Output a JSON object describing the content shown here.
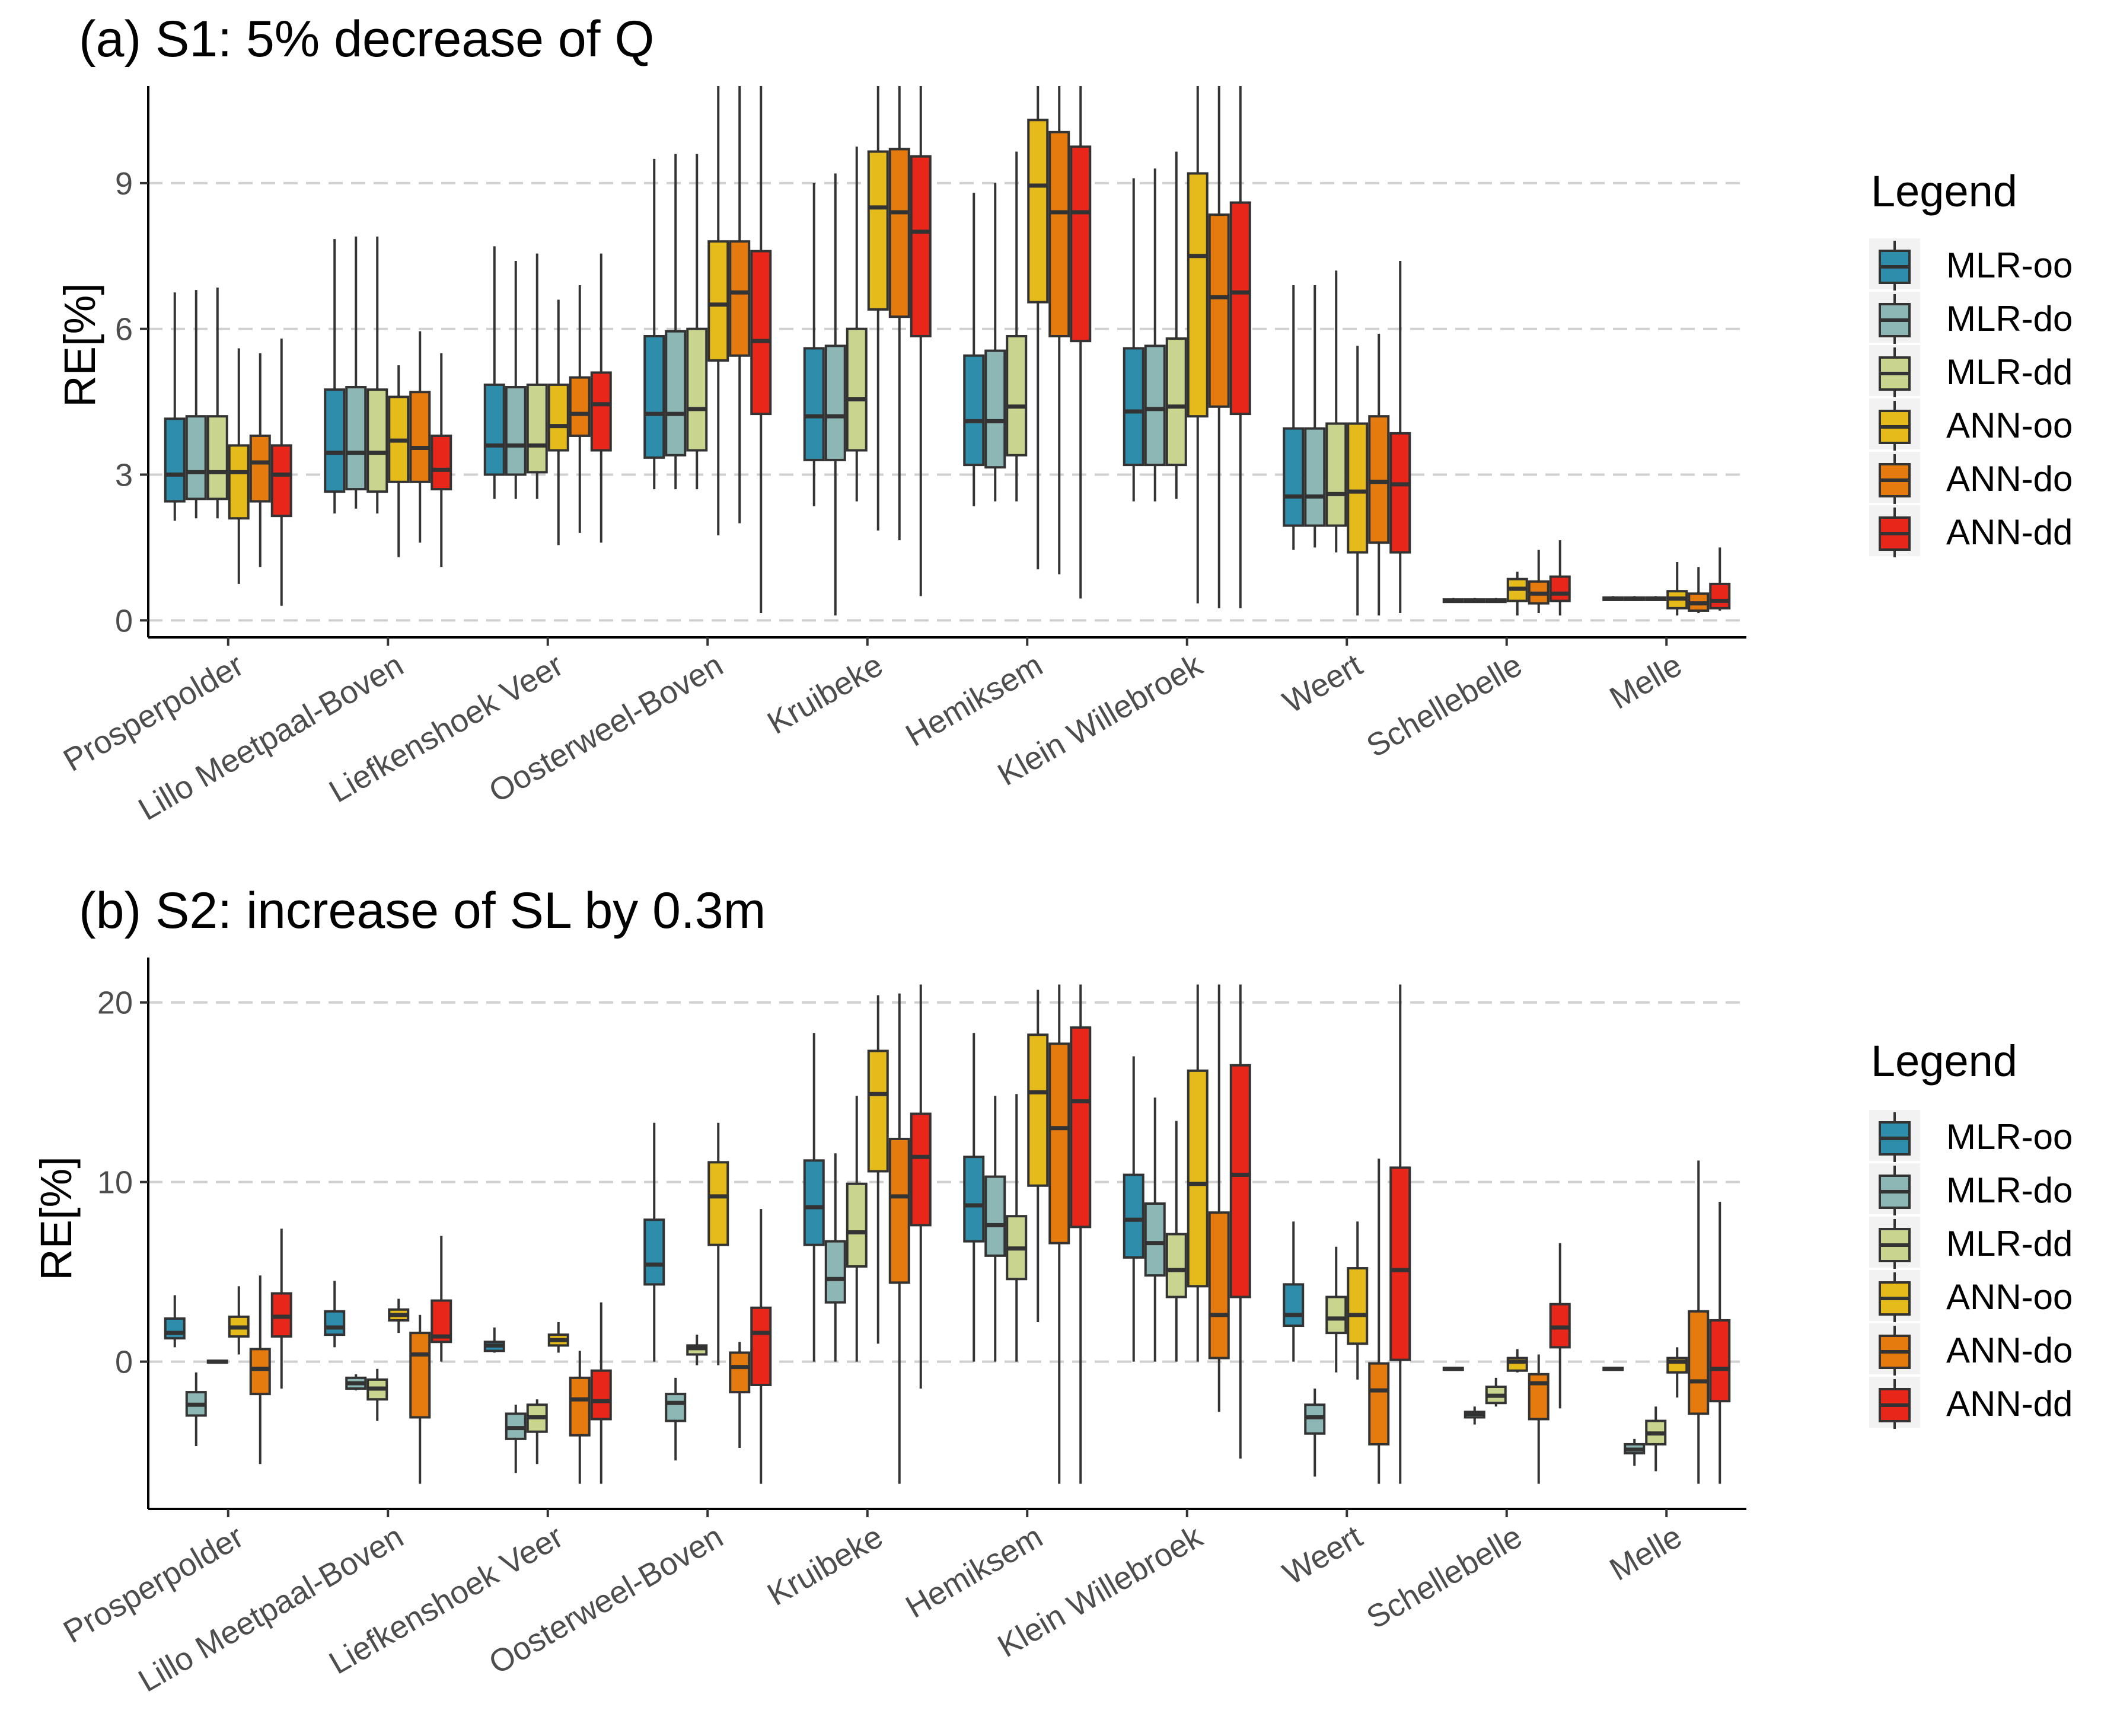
{
  "chart_data": [
    {
      "type": "boxplot",
      "title": "(a) S1: 5% decrease of Q",
      "ylabel": "RE[%]",
      "xlabel": "",
      "ylim": [
        -0.35,
        11.0
      ],
      "yticks": [
        0,
        3,
        6,
        9
      ],
      "grid": "horizontal-dashed",
      "legend_title": "Legend",
      "legend_placement": "right",
      "categories": [
        "Prosperpolder",
        "Lillo Meetpaal-Boven",
        "Liefkenshoek Veer",
        "Oosterweel-Boven",
        "Kruibeke",
        "Hemiksem",
        "Klein Willebroek",
        "Weert",
        "Schellebelle",
        "Melle"
      ],
      "series": [
        {
          "name": "MLR-oo",
          "color": "#2E8DAA",
          "boxes": [
            [
              2.05,
              2.45,
              3.0,
              4.15,
              6.75
            ],
            [
              2.2,
              2.65,
              3.45,
              4.75,
              7.85
            ],
            [
              2.5,
              3.0,
              3.6,
              4.85,
              7.7
            ],
            [
              2.7,
              3.35,
              4.25,
              5.85,
              9.5
            ],
            [
              2.35,
              3.3,
              4.2,
              5.6,
              9.0
            ],
            [
              2.35,
              3.2,
              4.1,
              5.45,
              8.8
            ],
            [
              2.45,
              3.2,
              4.3,
              5.6,
              9.1
            ],
            [
              1.45,
              1.95,
              2.55,
              3.95,
              6.9
            ],
            [
              0.36,
              0.38,
              0.4,
              0.43,
              0.46
            ],
            [
              0.4,
              0.42,
              0.44,
              0.47,
              0.5
            ]
          ]
        },
        {
          "name": "MLR-do",
          "color": "#8DB7B5",
          "boxes": [
            [
              2.1,
              2.5,
              3.05,
              4.2,
              6.8
            ],
            [
              2.3,
              2.7,
              3.45,
              4.8,
              7.9
            ],
            [
              2.5,
              3.0,
              3.6,
              4.8,
              7.4
            ],
            [
              2.7,
              3.4,
              4.25,
              5.95,
              9.6
            ],
            [
              0.1,
              3.3,
              4.2,
              5.65,
              9.2
            ],
            [
              2.45,
              3.15,
              4.1,
              5.55,
              9.0
            ],
            [
              2.45,
              3.2,
              4.35,
              5.65,
              9.3
            ],
            [
              1.5,
              1.95,
              2.55,
              3.95,
              6.9
            ],
            [
              0.36,
              0.38,
              0.4,
              0.43,
              0.46
            ],
            [
              0.4,
              0.42,
              0.44,
              0.47,
              0.5
            ]
          ]
        },
        {
          "name": "MLR-dd",
          "color": "#C9D58F",
          "boxes": [
            [
              2.1,
              2.5,
              3.05,
              4.2,
              6.85
            ],
            [
              2.2,
              2.65,
              3.45,
              4.75,
              7.9
            ],
            [
              2.5,
              3.05,
              3.6,
              4.85,
              7.55
            ],
            [
              2.7,
              3.5,
              4.35,
              6.0,
              9.6
            ],
            [
              2.45,
              3.5,
              4.55,
              6.0,
              9.75
            ],
            [
              2.45,
              3.4,
              4.4,
              5.85,
              9.65
            ],
            [
              2.5,
              3.2,
              4.4,
              5.8,
              9.65
            ],
            [
              1.4,
              1.95,
              2.6,
              4.05,
              7.2
            ],
            [
              0.36,
              0.38,
              0.4,
              0.43,
              0.46
            ],
            [
              0.4,
              0.42,
              0.44,
              0.47,
              0.5
            ]
          ]
        },
        {
          "name": "ANN-oo",
          "color": "#E5BA1B",
          "boxes": [
            [
              0.75,
              2.1,
              3.05,
              3.6,
              5.6
            ],
            [
              1.3,
              2.85,
              3.7,
              4.6,
              5.25
            ],
            [
              1.55,
              3.5,
              4.0,
              4.85,
              6.6
            ],
            [
              1.75,
              5.35,
              6.5,
              7.8,
              11.0
            ],
            [
              1.85,
              6.4,
              8.5,
              9.65,
              11.0
            ],
            [
              1.05,
              6.55,
              8.95,
              10.3,
              11.0
            ],
            [
              0.35,
              4.2,
              7.5,
              9.2,
              11.0
            ],
            [
              0.1,
              1.4,
              2.65,
              4.05,
              5.65
            ],
            [
              0.1,
              0.4,
              0.65,
              0.85,
              1.0
            ],
            [
              0.1,
              0.25,
              0.45,
              0.6,
              1.2
            ]
          ]
        },
        {
          "name": "ANN-do",
          "color": "#E57A0F",
          "boxes": [
            [
              1.1,
              2.45,
              3.25,
              3.8,
              5.5
            ],
            [
              1.6,
              2.85,
              3.55,
              4.7,
              5.95
            ],
            [
              1.8,
              3.8,
              4.25,
              5.0,
              6.9
            ],
            [
              2.0,
              5.45,
              6.75,
              7.8,
              11.0
            ],
            [
              1.65,
              6.25,
              8.4,
              9.7,
              11.0
            ],
            [
              0.95,
              5.85,
              8.4,
              10.05,
              11.0
            ],
            [
              0.25,
              4.4,
              6.65,
              8.35,
              11.0
            ],
            [
              0.1,
              1.6,
              2.85,
              4.2,
              5.9
            ],
            [
              0.15,
              0.35,
              0.55,
              0.8,
              1.45
            ],
            [
              0.15,
              0.2,
              0.35,
              0.55,
              1.1
            ]
          ]
        },
        {
          "name": "ANN-dd",
          "color": "#E8271A",
          "boxes": [
            [
              0.3,
              2.15,
              3.0,
              3.6,
              5.8
            ],
            [
              1.1,
              2.7,
              3.1,
              3.8,
              5.5
            ],
            [
              1.6,
              3.5,
              4.45,
              5.1,
              7.55
            ],
            [
              0.15,
              4.25,
              5.75,
              7.6,
              11.0
            ],
            [
              0.5,
              5.85,
              8.0,
              9.55,
              11.0
            ],
            [
              0.45,
              5.75,
              8.4,
              9.75,
              11.0
            ],
            [
              0.25,
              4.25,
              6.75,
              8.6,
              11.0
            ],
            [
              0.15,
              1.4,
              2.8,
              3.85,
              7.4
            ],
            [
              0.1,
              0.4,
              0.55,
              0.9,
              1.65
            ],
            [
              0.2,
              0.25,
              0.4,
              0.75,
              1.5
            ]
          ]
        }
      ]
    },
    {
      "type": "boxplot",
      "title": "(b) S2: increase of SL by 0.3m",
      "ylabel": "RE[%]",
      "xlabel": "",
      "ylim": [
        -8.2,
        22.5
      ],
      "yticks": [
        0,
        10,
        20
      ],
      "grid": "horizontal-dashed",
      "legend_title": "Legend",
      "legend_placement": "right",
      "categories": [
        "Prosperpolder",
        "Lillo Meetpaal-Boven",
        "Liefkenshoek Veer",
        "Oosterweel-Boven",
        "Kruibeke",
        "Hemiksem",
        "Klein Willebroek",
        "Weert",
        "Schellebelle",
        "Melle"
      ],
      "series": [
        {
          "name": "MLR-oo",
          "color": "#2E8DAA",
          "boxes": [
            [
              0.8,
              1.3,
              1.6,
              2.4,
              3.7
            ],
            [
              0.8,
              1.5,
              1.9,
              2.8,
              4.5
            ],
            [
              0.5,
              0.6,
              0.9,
              1.1,
              1.9
            ],
            [
              0.0,
              4.3,
              5.4,
              7.9,
              13.3
            ],
            [
              0.0,
              6.5,
              8.6,
              11.2,
              18.3
            ],
            [
              0.0,
              6.7,
              8.7,
              11.4,
              18.3
            ],
            [
              0.0,
              5.8,
              7.9,
              10.4,
              17.0
            ],
            [
              0.0,
              2.0,
              2.6,
              4.3,
              7.8
            ],
            [
              -0.45,
              -0.45,
              -0.4,
              -0.35,
              -0.3
            ],
            [
              -0.45,
              -0.45,
              -0.4,
              -0.35,
              -0.3
            ]
          ]
        },
        {
          "name": "MLR-do",
          "color": "#8DB7B5",
          "boxes": [
            [
              -4.7,
              -3.0,
              -2.4,
              -1.7,
              -0.6
            ],
            [
              -1.6,
              -1.5,
              -1.2,
              -0.9,
              -0.7
            ],
            [
              -6.2,
              -4.3,
              -3.7,
              -2.9,
              -2.4
            ],
            [
              -5.5,
              -3.3,
              -2.3,
              -1.8,
              -0.9
            ],
            [
              0.0,
              3.3,
              4.6,
              6.7,
              11.6
            ],
            [
              0.0,
              5.9,
              7.6,
              10.3,
              14.8
            ],
            [
              0.0,
              4.8,
              6.6,
              8.8,
              14.7
            ],
            [
              -6.4,
              -4.0,
              -3.1,
              -2.4,
              -1.5
            ],
            [
              -3.5,
              -3.1,
              -2.9,
              -2.8,
              -2.5
            ],
            [
              -5.8,
              -5.1,
              -4.9,
              -4.6,
              -4.3
            ]
          ]
        },
        {
          "name": "MLR-dd",
          "color": "#C9D58F",
          "boxes": [
            [
              -0.1,
              -0.05,
              0.0,
              0.05,
              0.1
            ],
            [
              -3.3,
              -2.1,
              -1.5,
              -1.0,
              -0.4
            ],
            [
              -5.7,
              -3.9,
              -3.1,
              -2.4,
              -2.1
            ],
            [
              -0.2,
              0.4,
              0.75,
              0.9,
              1.5
            ],
            [
              0.0,
              5.3,
              7.2,
              9.9,
              14.8
            ],
            [
              0.0,
              4.6,
              6.3,
              8.1,
              14.9
            ],
            [
              0.0,
              3.6,
              5.1,
              7.1,
              13.4
            ],
            [
              -0.6,
              1.6,
              2.4,
              3.6,
              6.4
            ],
            [
              -2.5,
              -2.3,
              -1.9,
              -1.4,
              -0.9
            ],
            [
              -6.1,
              -4.6,
              -4.0,
              -3.3,
              -2.5
            ]
          ]
        },
        {
          "name": "ANN-oo",
          "color": "#E5BA1B",
          "boxes": [
            [
              0.4,
              1.4,
              1.9,
              2.5,
              4.2
            ],
            [
              1.6,
              2.3,
              2.6,
              2.9,
              3.5
            ],
            [
              0.5,
              0.9,
              1.2,
              1.5,
              2.2
            ],
            [
              -0.2,
              6.5,
              9.2,
              11.1,
              13.3
            ],
            [
              1.0,
              10.6,
              14.9,
              17.3,
              20.4
            ],
            [
              2.2,
              9.8,
              15.0,
              18.2,
              20.7
            ],
            [
              0.0,
              4.2,
              9.9,
              16.2,
              21.0
            ],
            [
              -1.0,
              1.0,
              2.6,
              5.2,
              7.8
            ],
            [
              -0.6,
              -0.5,
              0.0,
              0.2,
              0.7
            ],
            [
              -2.0,
              -0.6,
              0.0,
              0.2,
              0.8
            ]
          ]
        },
        {
          "name": "ANN-do",
          "color": "#E57A0F",
          "boxes": [
            [
              -5.7,
              -1.8,
              -0.4,
              0.7,
              4.8
            ],
            [
              -6.8,
              -3.1,
              0.4,
              1.6,
              2.6
            ],
            [
              -6.8,
              -4.1,
              -2.1,
              -0.9,
              0.6
            ],
            [
              -4.8,
              -1.7,
              -0.3,
              0.5,
              1.1
            ],
            [
              -6.8,
              4.4,
              9.2,
              12.4,
              20.5
            ],
            [
              -6.8,
              6.6,
              13.0,
              17.7,
              21.0
            ],
            [
              -2.8,
              0.2,
              2.6,
              8.3,
              21.0
            ],
            [
              -6.8,
              -4.6,
              -1.6,
              -0.1,
              11.3
            ],
            [
              -6.8,
              -3.2,
              -1.2,
              -0.7,
              0.4
            ],
            [
              -6.8,
              -2.9,
              -1.1,
              2.8,
              11.2
            ]
          ]
        },
        {
          "name": "ANN-dd",
          "color": "#E8271A",
          "boxes": [
            [
              -1.5,
              1.4,
              2.5,
              3.8,
              7.4
            ],
            [
              0.0,
              1.1,
              1.4,
              3.4,
              7.0
            ],
            [
              -6.8,
              -3.2,
              -2.2,
              -0.5,
              3.3
            ],
            [
              -6.8,
              -1.3,
              1.6,
              3.0,
              8.5
            ],
            [
              -1.5,
              7.6,
              11.4,
              13.8,
              21.0
            ],
            [
              -6.8,
              7.5,
              14.5,
              18.6,
              21.0
            ],
            [
              -5.4,
              3.6,
              10.4,
              16.5,
              21.0
            ],
            [
              -6.8,
              0.1,
              5.1,
              10.8,
              21.0
            ],
            [
              -2.6,
              0.8,
              1.9,
              3.2,
              6.6
            ],
            [
              -6.8,
              -2.2,
              -0.4,
              2.3,
              8.9
            ]
          ]
        }
      ]
    }
  ]
}
